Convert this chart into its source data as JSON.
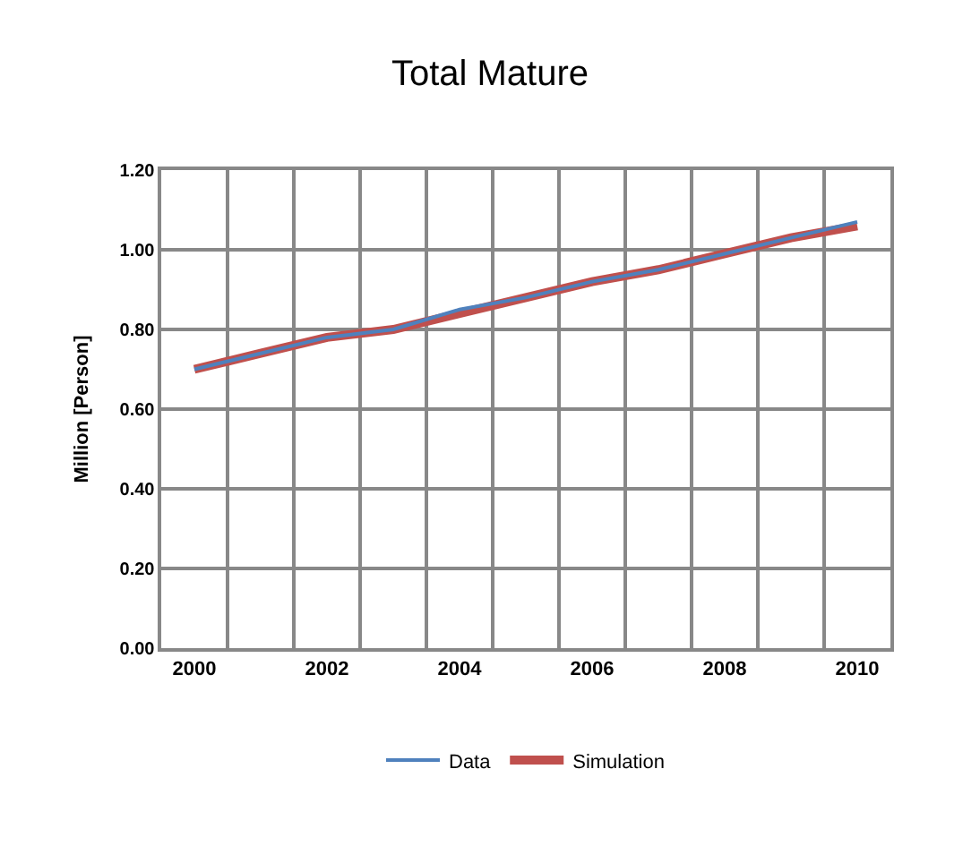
{
  "chart_data": {
    "type": "line",
    "title": "Total Mature",
    "ylabel": "Million [Person]",
    "categories": [
      "2000",
      null,
      "2002",
      null,
      "2004",
      null,
      "2006",
      null,
      "2008",
      null,
      "2010"
    ],
    "series": [
      {
        "name": "Data",
        "color": "#4f81bd",
        "values": [
          0.7,
          0.74,
          0.78,
          0.8,
          0.85,
          0.88,
          0.92,
          0.95,
          0.99,
          1.03,
          1.07
        ]
      },
      {
        "name": "Simulation",
        "color": "#c0504d",
        "values": [
          0.7,
          0.74,
          0.78,
          0.8,
          0.84,
          0.88,
          0.92,
          0.95,
          0.99,
          1.03,
          1.06
        ]
      }
    ],
    "ylim": [
      0,
      1.2
    ],
    "yticks": [
      {
        "value": 0,
        "label": "0.00"
      },
      {
        "value": 0.2,
        "label": "0.20"
      },
      {
        "value": 0.4,
        "label": "0.40"
      },
      {
        "value": 0.6,
        "label": "0.60"
      },
      {
        "value": 0.8,
        "label": "0.80"
      },
      {
        "value": 1.0,
        "label": "1.00"
      },
      {
        "value": 1.2,
        "label": "1.20"
      }
    ],
    "grid": true,
    "legend": "bottom",
    "marker": "none",
    "line_style": "solid"
  }
}
